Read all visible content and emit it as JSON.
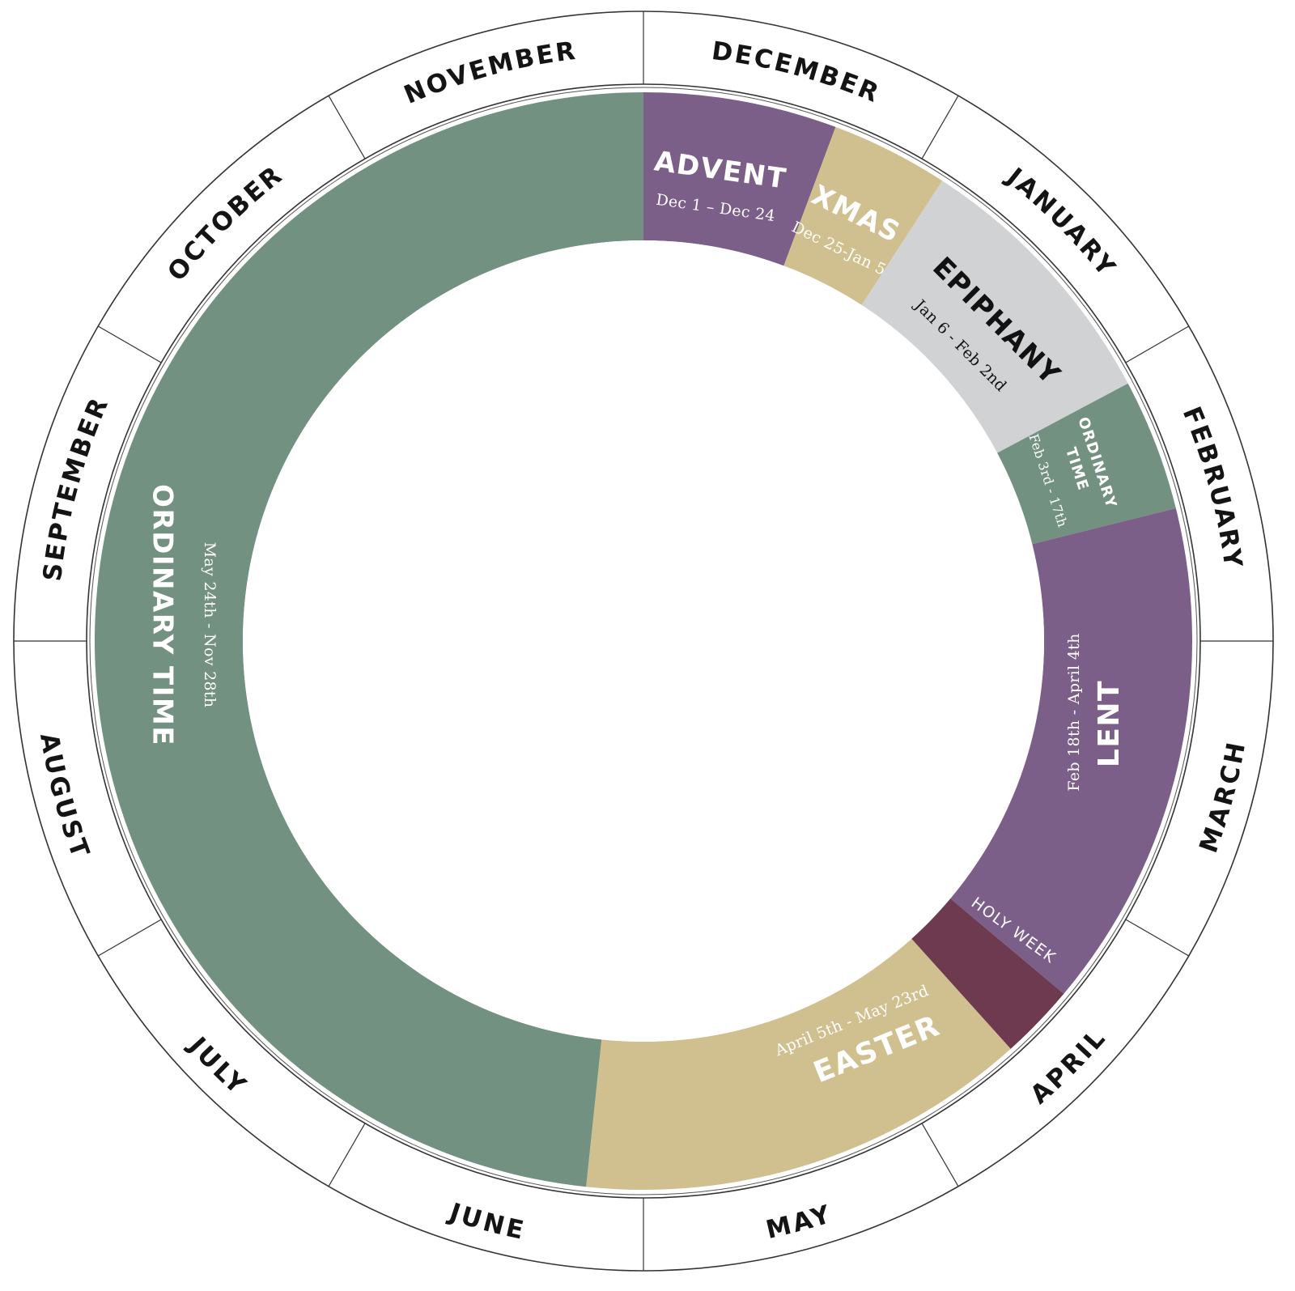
{
  "months": [
    {
      "name": "DECEMBER"
    },
    {
      "name": "JANUARY"
    },
    {
      "name": "FEBRUARY"
    },
    {
      "name": "MARCH"
    },
    {
      "name": "APRIL"
    },
    {
      "name": "MAY"
    },
    {
      "name": "JUNE"
    },
    {
      "name": "JULY"
    },
    {
      "name": "AUGUST"
    },
    {
      "name": "SEPTEMBER"
    },
    {
      "name": "OCTOBER"
    },
    {
      "name": "NOVEMBER"
    }
  ],
  "seasons": [
    {
      "key": "advent",
      "title": "ADVENT",
      "dates": "Dec 1 – Dec 24",
      "color": "#7b5f89",
      "text_color": "#ffffff"
    },
    {
      "key": "xmas",
      "title": "XMAS",
      "dates": "Dec 25-Jan 5",
      "color": "#d1c08f",
      "text_color": "#ffffff"
    },
    {
      "key": "epiphany",
      "title": "EPIPHANY",
      "dates": "Jan 6 - Feb 2nd",
      "color": "#d1d2d4",
      "text_color": "#111111"
    },
    {
      "key": "ordinary-time-short",
      "title_lines": [
        "ORDINARY",
        "TIME"
      ],
      "dates": "Feb 3rd - 17th",
      "color": "#739180",
      "text_color": "#ffffff"
    },
    {
      "key": "lent",
      "title": "LENT",
      "dates": "Feb 18th - April 4th",
      "color": "#7b5f89",
      "text_color": "#ffffff"
    },
    {
      "key": "holy-week",
      "title": "HOLY WEEK",
      "color": "#6e3a4f",
      "text_color": "#ffffff"
    },
    {
      "key": "easter",
      "title": "EASTER",
      "dates": "April 5th - May 23rd",
      "color": "#d1c08f",
      "text_color": "#ffffff"
    },
    {
      "key": "ordinary-time-long",
      "title": "ORDINARY TIME",
      "dates": "May 24th - Nov 28th",
      "color": "#739180",
      "text_color": "#ffffff"
    }
  ]
}
